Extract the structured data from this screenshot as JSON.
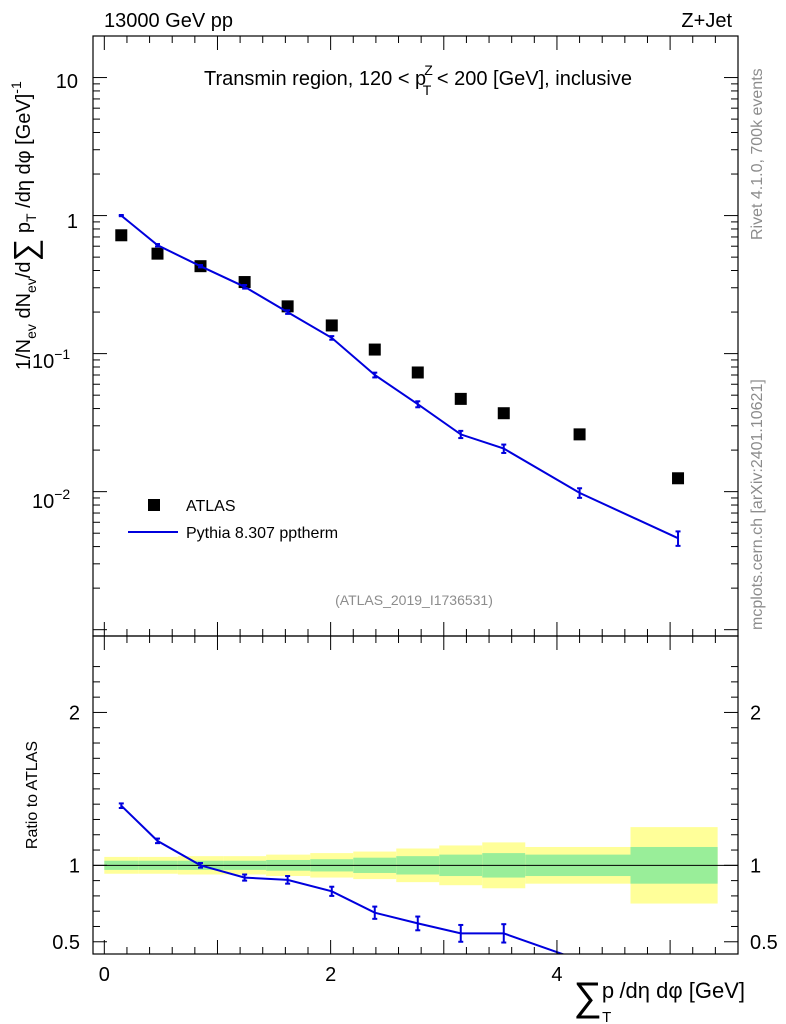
{
  "header": {
    "left_label": "13000 GeV pp",
    "right_label": "Z+Jet"
  },
  "side_labels": {
    "rivet": "Rivet 4.1.0,  700k events",
    "mcplots": "mcplots.cern.ch [arXiv:2401.10621]"
  },
  "analysis_id": "(ATLAS_2019_I1736531)",
  "chart_data": [
    {
      "type": "line",
      "panel": "main",
      "title": "Transmin region, 120 < p_T^Z < 200 [GeV], inclusive",
      "title_parts": {
        "prefix": "Transmin region, 120 < p",
        "sub": "T",
        "sup": "Z",
        "suffix": " < 200 [GeV], inclusive"
      },
      "ylabel": "1/N_ev dN_ev/d Σ p_T /dη dφ [GeV]^-1",
      "yscale": "log",
      "xlim": [
        -0.1,
        5.6
      ],
      "ylim": [
        0.0009,
        20
      ],
      "ytick_labels": {
        "e1": "10",
        "e0": "1",
        "em1": "10",
        "em1_exp": "−1",
        "em2": "10",
        "em2_exp": "−2"
      },
      "legend": {
        "position": "bottom-left",
        "entries": [
          "ATLAS",
          "Pythia 8.307 pptherm"
        ]
      },
      "series": [
        {
          "name": "ATLAS",
          "style": "markers",
          "color": "#000000",
          "x": [
            0.15,
            0.47,
            0.85,
            1.24,
            1.62,
            2.01,
            2.39,
            2.77,
            3.15,
            3.53,
            4.2,
            5.07
          ],
          "values": [
            0.72,
            0.53,
            0.43,
            0.33,
            0.22,
            0.16,
            0.107,
            0.073,
            0.047,
            0.037,
            0.026,
            0.0125
          ]
        },
        {
          "name": "Pythia 8.307 pptherm",
          "style": "line",
          "color": "#0000dd",
          "x": [
            0.15,
            0.47,
            0.85,
            1.24,
            1.62,
            2.01,
            2.39,
            2.77,
            3.15,
            3.53,
            4.2,
            5.07
          ],
          "values": [
            1.0,
            0.61,
            0.43,
            0.305,
            0.2,
            0.13,
            0.07,
            0.043,
            0.026,
            0.0205,
            0.0098,
            0.0046
          ],
          "rel_err": [
            0.01,
            0.02,
            0.02,
            0.03,
            0.03,
            0.03,
            0.04,
            0.05,
            0.06,
            0.07,
            0.08,
            0.12
          ]
        }
      ]
    },
    {
      "type": "line",
      "panel": "ratio",
      "ylabel": "Ratio to ATLAS",
      "xlabel": "Σ p_T /dη dφ [GeV]",
      "xlabel_parts": {
        "main": "p",
        "sub": "T",
        "rest": " /dη dφ [GeV]"
      },
      "xlim": [
        -0.1,
        5.6
      ],
      "ylim": [
        0.42,
        2.5
      ],
      "xtick_labels": [
        "0",
        "2",
        "4"
      ],
      "xtick_values": [
        0,
        2,
        4
      ],
      "ytick_labels": [
        "0.5",
        "1",
        "2"
      ],
      "ytick_values": [
        0.5,
        1,
        2
      ],
      "reference_line": 1,
      "uncertainty_bands": {
        "bins": [
          [
            0,
            0.3
          ],
          [
            0.3,
            0.65
          ],
          [
            0.65,
            1.05
          ],
          [
            1.05,
            1.43
          ],
          [
            1.43,
            1.82
          ],
          [
            1.82,
            2.2
          ],
          [
            2.2,
            2.58
          ],
          [
            2.58,
            2.96
          ],
          [
            2.96,
            3.34
          ],
          [
            3.34,
            3.72
          ],
          [
            3.72,
            4.65
          ],
          [
            4.65,
            5.42
          ]
        ],
        "stat": [
          0.03,
          0.03,
          0.03,
          0.03,
          0.035,
          0.04,
          0.05,
          0.06,
          0.07,
          0.08,
          0.07,
          0.12
        ],
        "total": [
          0.055,
          0.055,
          0.06,
          0.06,
          0.07,
          0.08,
          0.09,
          0.11,
          0.13,
          0.15,
          0.12,
          0.25
        ],
        "stat_color": "#99ee99",
        "total_color": "#ffff99"
      },
      "series": [
        {
          "name": "Pythia 8.307 pptherm / ATLAS",
          "color": "#0000dd",
          "x": [
            0.15,
            0.47,
            0.85,
            1.24,
            1.62,
            2.01,
            2.39,
            2.77,
            3.15,
            3.53,
            4.2
          ],
          "values": [
            1.39,
            1.16,
            1.0,
            0.92,
            0.905,
            0.83,
            0.69,
            0.62,
            0.555,
            0.555,
            0.38
          ],
          "errors": [
            0.015,
            0.015,
            0.015,
            0.02,
            0.025,
            0.03,
            0.04,
            0.045,
            0.055,
            0.06,
            0.05
          ]
        }
      ]
    }
  ]
}
